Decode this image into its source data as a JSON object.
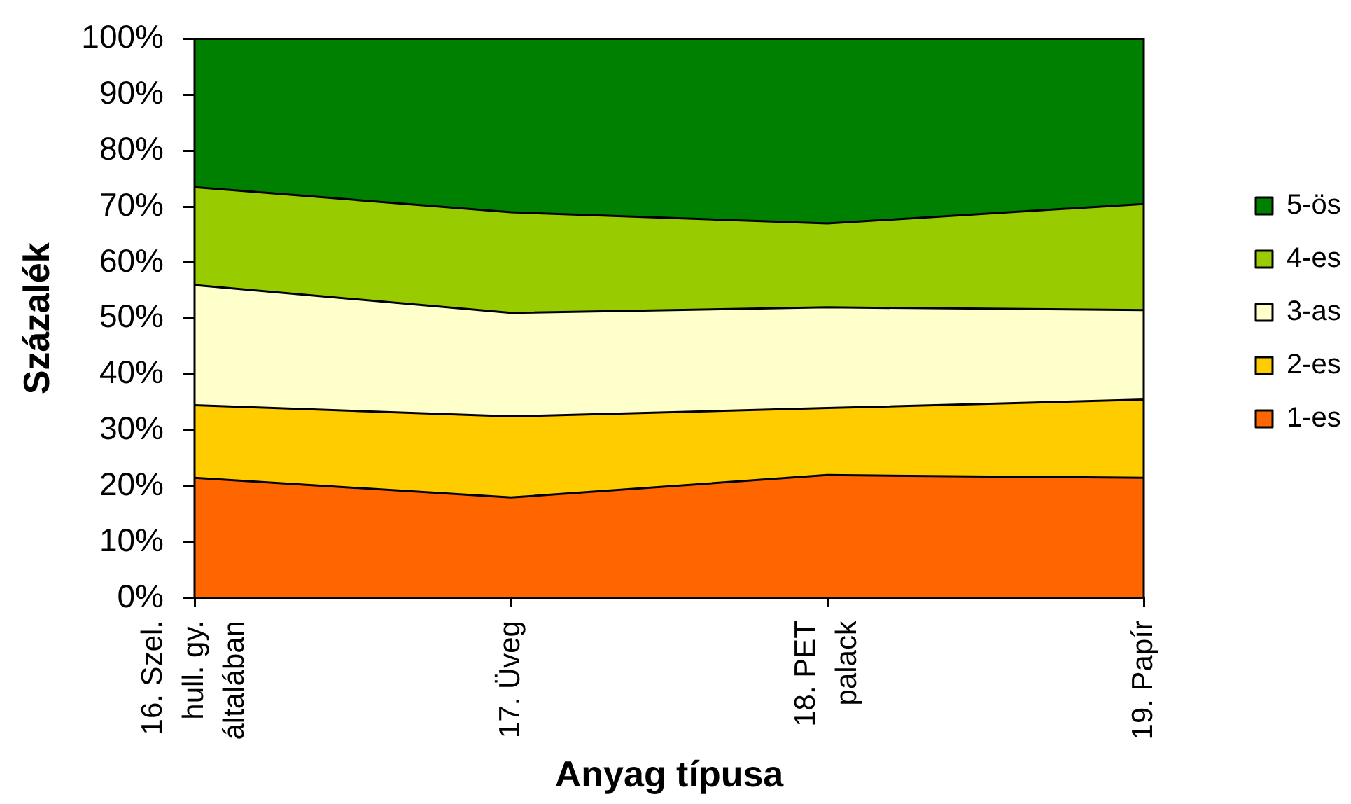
{
  "chart_data": {
    "type": "area",
    "xlabel": "Anyag típusa",
    "ylabel": "Százalék",
    "categories": [
      "16. Szel. hull. gy. általában",
      "17. Üveg",
      "18. PET palack",
      "19. Papír"
    ],
    "stacked": true,
    "series": [
      {
        "name": "1-es",
        "color": "#ff6600",
        "values": [
          21.5,
          18,
          22,
          21.5
        ]
      },
      {
        "name": "2-es",
        "color": "#ffcc00",
        "values": [
          13,
          14.5,
          12,
          14
        ]
      },
      {
        "name": "3-as",
        "color": "#ffffcc",
        "values": [
          21.5,
          18.5,
          18,
          16
        ]
      },
      {
        "name": "4-es",
        "color": "#99cc00",
        "values": [
          17.5,
          18,
          15,
          19
        ]
      },
      {
        "name": "5-ös",
        "color": "#008000",
        "values": [
          26.5,
          31,
          33,
          29.5
        ]
      }
    ],
    "ylim": [
      0,
      100
    ],
    "yticks": [
      {
        "value": 0,
        "label": "0%"
      },
      {
        "value": 10,
        "label": "10%"
      },
      {
        "value": 20,
        "label": "20%"
      },
      {
        "value": 30,
        "label": "30%"
      },
      {
        "value": 40,
        "label": "40%"
      },
      {
        "value": 50,
        "label": "50%"
      },
      {
        "value": 60,
        "label": "60%"
      },
      {
        "value": 70,
        "label": "70%"
      },
      {
        "value": 80,
        "label": "80%"
      },
      {
        "value": 90,
        "label": "90%"
      },
      {
        "value": 100,
        "label": "100%"
      }
    ],
    "grid": false,
    "legend": "right"
  }
}
